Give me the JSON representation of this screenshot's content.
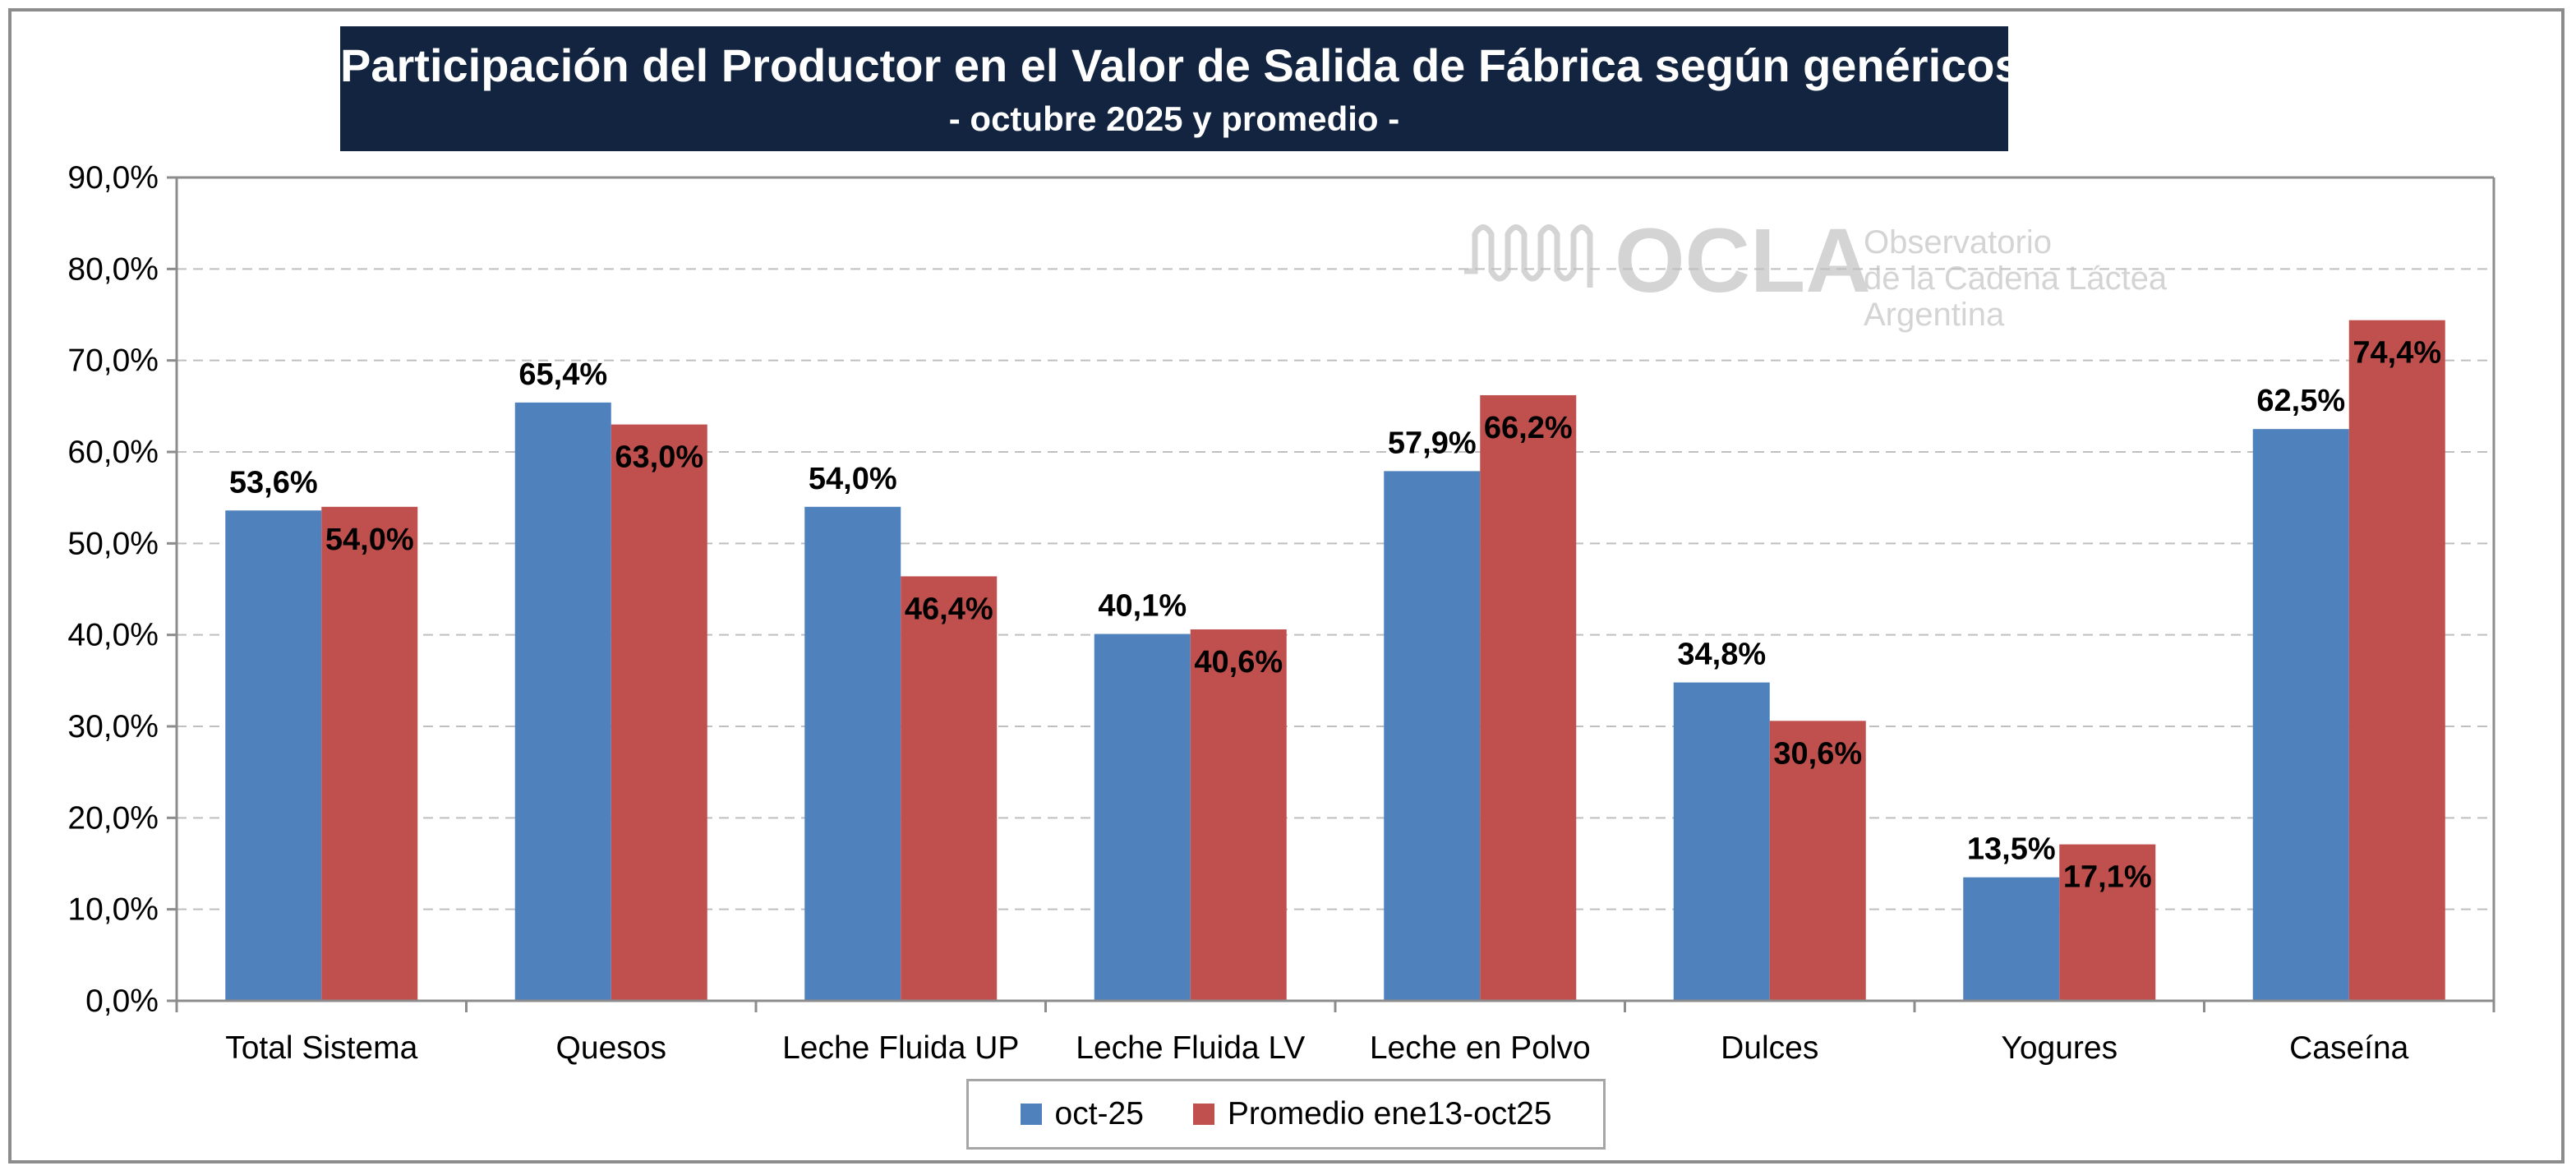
{
  "title": "Participación del Productor en el Valor de Salida de Fábrica según genéricos",
  "subtitle": "- octubre 2025 y promedio  -",
  "watermark": {
    "logo": "OCLA",
    "line1": "Observatorio",
    "line2": "de la Cadena Láctea",
    "line3": "Argentina"
  },
  "colors": {
    "series1": "#4f81bd",
    "series2": "#c0504d",
    "title_bg": "#12243f",
    "grid": "#bfbfbf"
  },
  "chart_data": {
    "type": "bar",
    "categories": [
      "Total Sistema",
      "Quesos",
      "Leche Fluida UP",
      "Leche Fluida LV",
      "Leche en Polvo",
      "Dulces",
      "Yogures",
      "Caseína"
    ],
    "series": [
      {
        "name": "oct-25",
        "values": [
          53.6,
          65.4,
          54.0,
          40.1,
          57.9,
          34.8,
          13.5,
          62.5
        ],
        "labels": [
          "53,6%",
          "65,4%",
          "54,0%",
          "40,1%",
          "57,9%",
          "34,8%",
          "13,5%",
          "62,5%"
        ]
      },
      {
        "name": "Promedio ene13-oct25",
        "values": [
          54.0,
          63.0,
          46.4,
          40.6,
          66.2,
          30.6,
          17.1,
          74.4
        ],
        "labels": [
          "54,0%",
          "63,0%",
          "46,4%",
          "40,6%",
          "66,2%",
          "30,6%",
          "17,1%",
          "74,4%"
        ]
      }
    ],
    "yticks": [
      0,
      10,
      20,
      30,
      40,
      50,
      60,
      70,
      80,
      90
    ],
    "ytick_labels": [
      "0,0%",
      "10,0%",
      "20,0%",
      "30,0%",
      "40,0%",
      "50,0%",
      "60,0%",
      "70,0%",
      "80,0%",
      "90,0%"
    ],
    "ylim": [
      0,
      90
    ],
    "xlabel": "",
    "ylabel": "",
    "grid": true,
    "legend_position": "bottom"
  }
}
